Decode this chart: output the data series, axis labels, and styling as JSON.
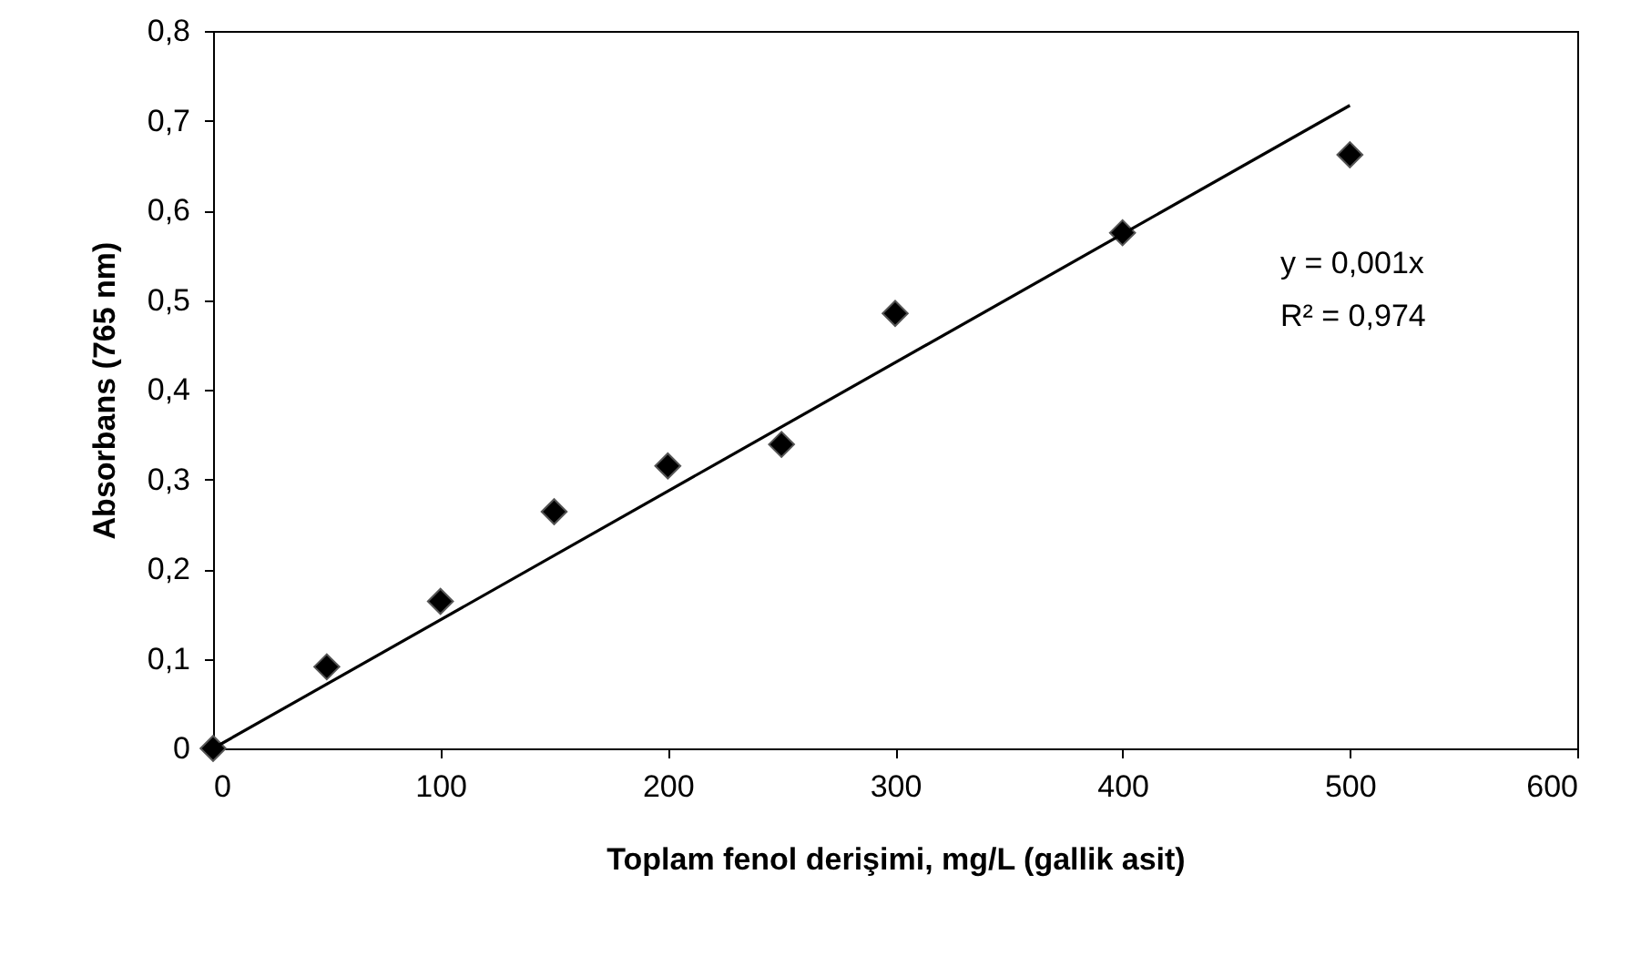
{
  "chart_data": {
    "type": "scatter",
    "xlabel": "Toplam fenol derişimi, mg/L (gallik asit)",
    "ylabel": "Absorbans (765 nm)",
    "xlim": [
      0,
      600
    ],
    "xticks": [
      0,
      100,
      200,
      300,
      400,
      500,
      600
    ],
    "ylim": [
      0,
      0.8
    ],
    "yticks": [
      {
        "value": 0,
        "label": "0"
      },
      {
        "value": 0.1,
        "label": "0,1"
      },
      {
        "value": 0.2,
        "label": "0,2"
      },
      {
        "value": 0.3,
        "label": "0,3"
      },
      {
        "value": 0.4,
        "label": "0,4"
      },
      {
        "value": 0.5,
        "label": "0,5"
      },
      {
        "value": 0.6,
        "label": "0,6"
      },
      {
        "value": 0.7,
        "label": "0,7"
      },
      {
        "value": 0.8,
        "label": "0,8"
      }
    ],
    "series": [
      {
        "color": "#000000",
        "marker": "diamond",
        "x": [
          0,
          50,
          100,
          150,
          200,
          250,
          300,
          400,
          500
        ],
        "values": [
          0,
          0.091,
          0.164,
          0.264,
          0.315,
          0.339,
          0.485,
          0.575,
          0.662
        ]
      },
      {
        "type": "line",
        "color": "#000000",
        "line_style": "solid",
        "x": [
          0,
          500
        ],
        "values": [
          0,
          0.717
        ]
      }
    ],
    "annotations": [
      "y = 0,001x",
      "R² = 0,974"
    ],
    "grid": false
  }
}
